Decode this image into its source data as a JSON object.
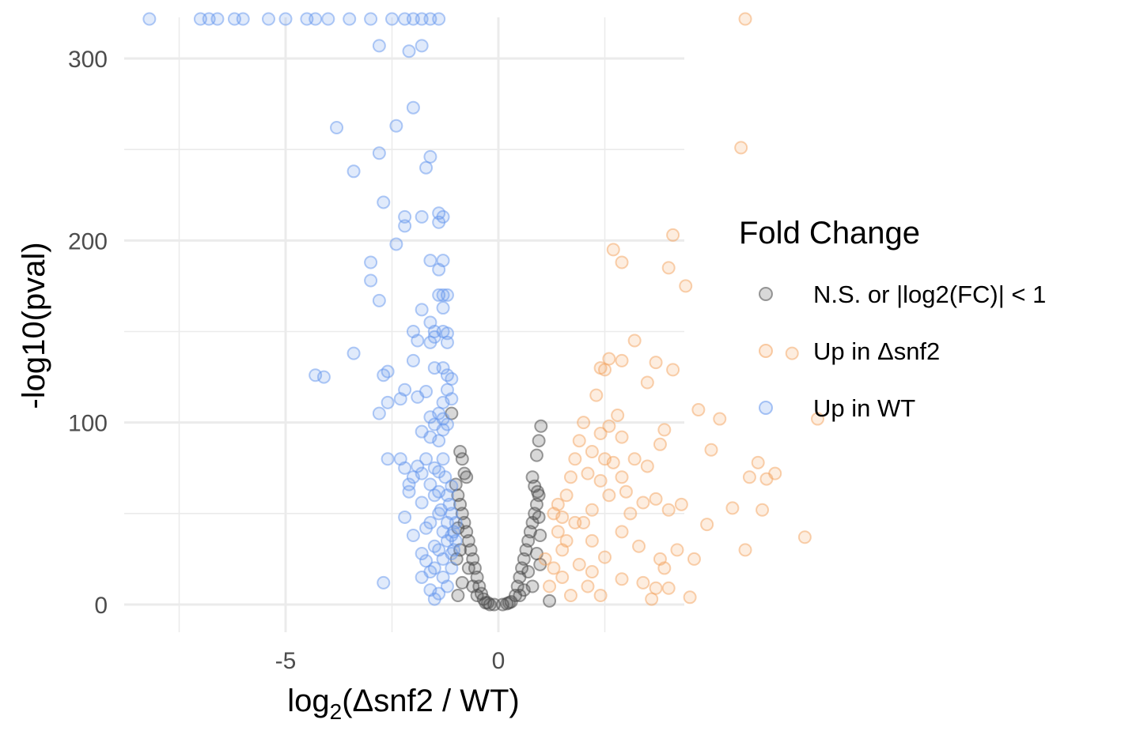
{
  "chart_data": {
    "type": "scatter",
    "title": "",
    "xlabel": {
      "prefix": "log",
      "subscript": "2",
      "suffix": "(Δsnf2 / WT)"
    },
    "ylabel": "-log10(pval)",
    "xlim": [
      -8.6,
      8.8
    ],
    "ylim": [
      -15,
      323
    ],
    "x_ticks": [
      -5,
      0
    ],
    "x_tick_labels": [
      "-5",
      "0"
    ],
    "x_minor_ticks": [
      -7.5,
      -2.5,
      2.5
    ],
    "y_ticks": [
      0,
      100,
      200,
      300
    ],
    "y_tick_labels": [
      "0",
      "100",
      "200",
      "300"
    ],
    "y_minor_ticks": [
      50,
      150,
      250
    ],
    "grid": true,
    "legend": {
      "title": "Fold Change",
      "placement": "right",
      "entries": [
        {
          "label": "N.S. or |log2(FC)| < 1",
          "color": "#4d4d4d"
        },
        {
          "label": "Up in Δsnf2",
          "color": "#f4a460"
        },
        {
          "label": "Up in WT",
          "color": "#6495ed"
        }
      ]
    },
    "series": [
      {
        "name": "N.S. or |log2(FC)| < 1",
        "color": "#4d4d4d",
        "points": [
          [
            -0.9,
            84
          ],
          [
            -0.85,
            80
          ],
          [
            -0.8,
            72
          ],
          [
            -0.75,
            70
          ],
          [
            -0.95,
            60
          ],
          [
            -0.9,
            55
          ],
          [
            -0.85,
            50
          ],
          [
            -0.8,
            45
          ],
          [
            -0.75,
            40
          ],
          [
            -0.7,
            35
          ],
          [
            -0.65,
            30
          ],
          [
            -0.6,
            25
          ],
          [
            -0.55,
            20
          ],
          [
            -0.5,
            15
          ],
          [
            -0.45,
            10
          ],
          [
            -0.4,
            6
          ],
          [
            -0.35,
            3
          ],
          [
            -0.3,
            1
          ],
          [
            -0.2,
            0
          ],
          [
            -0.1,
            0
          ],
          [
            0.1,
            0
          ],
          [
            0.2,
            0.5
          ],
          [
            0.3,
            1.5
          ],
          [
            0.4,
            5
          ],
          [
            0.45,
            10
          ],
          [
            0.5,
            15
          ],
          [
            0.55,
            20
          ],
          [
            0.6,
            25
          ],
          [
            0.65,
            30
          ],
          [
            0.7,
            35
          ],
          [
            0.75,
            40
          ],
          [
            0.8,
            45
          ],
          [
            0.85,
            50
          ],
          [
            0.9,
            55
          ],
          [
            0.95,
            60
          ],
          [
            0.85,
            65
          ],
          [
            0.8,
            70
          ],
          [
            0.9,
            82
          ],
          [
            0.95,
            90
          ],
          [
            1.0,
            98
          ],
          [
            -1.1,
            105
          ],
          [
            1.2,
            2
          ],
          [
            -0.95,
            5
          ],
          [
            -0.9,
            30
          ],
          [
            -0.95,
            42
          ],
          [
            0.95,
            48
          ],
          [
            0.98,
            38
          ],
          [
            0.9,
            28
          ],
          [
            -0.85,
            12
          ],
          [
            0.8,
            10
          ],
          [
            -0.7,
            20
          ],
          [
            0.7,
            18
          ],
          [
            -0.6,
            10
          ],
          [
            0.6,
            8
          ],
          [
            -0.98,
            25
          ],
          [
            0.98,
            22
          ],
          [
            -0.5,
            5
          ],
          [
            0.5,
            5
          ],
          [
            -0.25,
            1
          ],
          [
            0.25,
            1
          ],
          [
            -1.0,
            66
          ],
          [
            0.92,
            62
          ]
        ]
      },
      {
        "name": "Up in Δsnf2",
        "color": "#f4a460",
        "points": [
          [
            5.8,
            323
          ],
          [
            5.7,
            251
          ],
          [
            4.1,
            203
          ],
          [
            2.7,
            195
          ],
          [
            2.9,
            188
          ],
          [
            4.0,
            185
          ],
          [
            4.4,
            175
          ],
          [
            3.2,
            145
          ],
          [
            2.6,
            135
          ],
          [
            2.9,
            134
          ],
          [
            2.4,
            130
          ],
          [
            2.5,
            129
          ],
          [
            3.7,
            133
          ],
          [
            4.1,
            129
          ],
          [
            3.5,
            122
          ],
          [
            6.9,
            138
          ],
          [
            2.3,
            115
          ],
          [
            4.7,
            107
          ],
          [
            2.8,
            104
          ],
          [
            5.2,
            102
          ],
          [
            7.5,
            102
          ],
          [
            2.6,
            98
          ],
          [
            3.9,
            96
          ],
          [
            2.4,
            94
          ],
          [
            2.9,
            92
          ],
          [
            3.8,
            88
          ],
          [
            5.0,
            85
          ],
          [
            2.2,
            84
          ],
          [
            2.5,
            80
          ],
          [
            2.7,
            78
          ],
          [
            3.2,
            80
          ],
          [
            3.5,
            76
          ],
          [
            6.1,
            78
          ],
          [
            6.5,
            72
          ],
          [
            5.9,
            70
          ],
          [
            6.3,
            69
          ],
          [
            2.1,
            72
          ],
          [
            2.9,
            70
          ],
          [
            2.4,
            68
          ],
          [
            3.0,
            62
          ],
          [
            2.6,
            60
          ],
          [
            3.4,
            56
          ],
          [
            4.3,
            55
          ],
          [
            3.7,
            58
          ],
          [
            5.5,
            53
          ],
          [
            6.2,
            52
          ],
          [
            4.0,
            52
          ],
          [
            2.2,
            52
          ],
          [
            3.1,
            50
          ],
          [
            1.5,
            48
          ],
          [
            2.0,
            45
          ],
          [
            4.9,
            44
          ],
          [
            2.9,
            40
          ],
          [
            7.2,
            37
          ],
          [
            3.3,
            32
          ],
          [
            4.2,
            30
          ],
          [
            5.8,
            30
          ],
          [
            2.5,
            26
          ],
          [
            3.8,
            25
          ],
          [
            4.6,
            25
          ],
          [
            3.9,
            20
          ],
          [
            2.2,
            18
          ],
          [
            2.9,
            14
          ],
          [
            3.4,
            12
          ],
          [
            3.7,
            9
          ],
          [
            4.0,
            9
          ],
          [
            4.5,
            4
          ],
          [
            3.6,
            3
          ],
          [
            2.4,
            5
          ],
          [
            1.5,
            30
          ],
          [
            1.6,
            60
          ],
          [
            1.8,
            80
          ],
          [
            2.0,
            100
          ],
          [
            1.4,
            40
          ],
          [
            1.3,
            20
          ],
          [
            1.2,
            10
          ],
          [
            1.7,
            70
          ],
          [
            1.9,
            90
          ],
          [
            1.6,
            35
          ],
          [
            1.4,
            55
          ],
          [
            1.5,
            15
          ],
          [
            1.8,
            45
          ],
          [
            1.3,
            50
          ],
          [
            1.1,
            25
          ],
          [
            2.2,
            35
          ],
          [
            2.1,
            10
          ],
          [
            1.9,
            22
          ],
          [
            1.7,
            5
          ]
        ]
      },
      {
        "name": "Up in WT",
        "color": "#6495ed",
        "points": [
          [
            -8.2,
            323
          ],
          [
            -7.0,
            323
          ],
          [
            -6.8,
            323
          ],
          [
            -6.6,
            323
          ],
          [
            -6.2,
            323
          ],
          [
            -6.0,
            323
          ],
          [
            -5.4,
            323
          ],
          [
            -5.0,
            323
          ],
          [
            -4.5,
            323
          ],
          [
            -4.3,
            323
          ],
          [
            -4.0,
            323
          ],
          [
            -3.5,
            323
          ],
          [
            -3.0,
            323
          ],
          [
            -2.5,
            323
          ],
          [
            -2.2,
            323
          ],
          [
            -2.0,
            323
          ],
          [
            -1.8,
            323
          ],
          [
            -1.6,
            323
          ],
          [
            -1.4,
            323
          ],
          [
            -2.8,
            307
          ],
          [
            -2.1,
            304
          ],
          [
            -1.8,
            307
          ],
          [
            -2.0,
            273
          ],
          [
            -3.8,
            262
          ],
          [
            -2.4,
            263
          ],
          [
            -2.8,
            248
          ],
          [
            -1.6,
            246
          ],
          [
            -1.7,
            240
          ],
          [
            -3.4,
            238
          ],
          [
            -2.7,
            221
          ],
          [
            -2.2,
            213
          ],
          [
            -1.8,
            213
          ],
          [
            -1.4,
            215
          ],
          [
            -1.3,
            213
          ],
          [
            -2.2,
            208
          ],
          [
            -1.4,
            210
          ],
          [
            -2.4,
            198
          ],
          [
            -3.0,
            188
          ],
          [
            -1.6,
            189
          ],
          [
            -1.3,
            189
          ],
          [
            -3.0,
            178
          ],
          [
            -1.4,
            184
          ],
          [
            -2.8,
            167
          ],
          [
            -1.8,
            162
          ],
          [
            -1.3,
            163
          ],
          [
            -1.4,
            170
          ],
          [
            -1.3,
            170
          ],
          [
            -1.2,
            170
          ],
          [
            -2.0,
            150
          ],
          [
            -1.6,
            155
          ],
          [
            -1.5,
            150
          ],
          [
            -1.3,
            150
          ],
          [
            -1.2,
            149
          ],
          [
            -1.5,
            147
          ],
          [
            -1.9,
            145
          ],
          [
            -1.6,
            144
          ],
          [
            -1.2,
            144
          ],
          [
            -3.4,
            138
          ],
          [
            -2.0,
            134
          ],
          [
            -1.5,
            130
          ],
          [
            -1.3,
            130
          ],
          [
            -1.2,
            126
          ],
          [
            -2.6,
            128
          ],
          [
            -2.7,
            126
          ],
          [
            -4.3,
            126
          ],
          [
            -4.1,
            125
          ],
          [
            -1.1,
            124
          ],
          [
            -2.6,
            111
          ],
          [
            -2.2,
            118
          ],
          [
            -2.3,
            113
          ],
          [
            -1.9,
            114
          ],
          [
            -1.7,
            117
          ],
          [
            -1.2,
            118
          ],
          [
            -1.1,
            113
          ],
          [
            -1.3,
            111
          ],
          [
            -2.8,
            105
          ],
          [
            -1.6,
            103
          ],
          [
            -1.4,
            105
          ],
          [
            -1.3,
            102
          ],
          [
            -1.5,
            99
          ],
          [
            -1.2,
            99
          ],
          [
            -1.3,
            96
          ],
          [
            -1.8,
            95
          ],
          [
            -1.6,
            92
          ],
          [
            -1.4,
            90
          ],
          [
            -2.6,
            80
          ],
          [
            -2.3,
            80
          ],
          [
            -1.7,
            80
          ],
          [
            -1.9,
            76
          ],
          [
            -2.2,
            75
          ],
          [
            -1.5,
            75
          ],
          [
            -1.4,
            73
          ],
          [
            -1.8,
            72
          ],
          [
            -1.3,
            80
          ],
          [
            -2.0,
            70
          ],
          [
            -2.1,
            66
          ],
          [
            -2.1,
            62
          ],
          [
            -1.6,
            66
          ],
          [
            -1.4,
            62
          ],
          [
            -1.8,
            56
          ],
          [
            -1.5,
            60
          ],
          [
            -2.2,
            48
          ],
          [
            -1.4,
            50
          ],
          [
            -1.6,
            45
          ],
          [
            -1.7,
            42
          ],
          [
            -1.3,
            40
          ],
          [
            -1.2,
            35
          ],
          [
            -2.0,
            38
          ],
          [
            -1.5,
            32
          ],
          [
            -1.4,
            30
          ],
          [
            -1.8,
            28
          ],
          [
            -1.1,
            28
          ],
          [
            -1.7,
            24
          ],
          [
            -1.5,
            20
          ],
          [
            -1.6,
            18
          ],
          [
            -1.3,
            15
          ],
          [
            -1.8,
            15
          ],
          [
            -2.7,
            12
          ],
          [
            -1.2,
            10
          ],
          [
            -1.6,
            8
          ],
          [
            -1.4,
            6
          ],
          [
            -1.5,
            3
          ],
          [
            -1.1,
            50
          ],
          [
            -1.0,
            45
          ],
          [
            -1.15,
            55
          ],
          [
            -1.05,
            40
          ],
          [
            -1.2,
            60
          ],
          [
            -1.1,
            65
          ],
          [
            -1.25,
            70
          ],
          [
            -1.05,
            30
          ],
          [
            -1.1,
            20
          ],
          [
            -1.3,
            25
          ],
          [
            -1.0,
            35
          ],
          [
            -1.2,
            45
          ],
          [
            -1.1,
            38
          ],
          [
            -1.35,
            52
          ]
        ]
      }
    ]
  }
}
